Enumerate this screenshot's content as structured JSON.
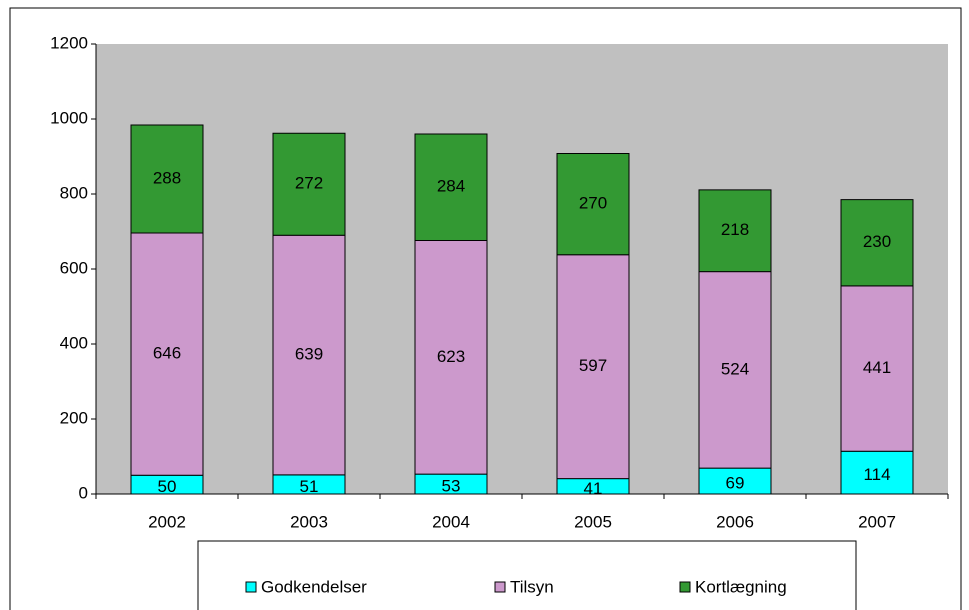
{
  "chart_data": {
    "type": "stacked_bar",
    "categories": [
      "2002",
      "2003",
      "2004",
      "2005",
      "2006",
      "2007"
    ],
    "series": [
      {
        "name": "Godkendelser",
        "color": "#00ffff",
        "values": [
          50,
          51,
          53,
          41,
          69,
          114
        ]
      },
      {
        "name": "Tilsyn",
        "color": "#cc99cc",
        "values": [
          646,
          639,
          623,
          597,
          524,
          441
        ]
      },
      {
        "name": "Kortlægning",
        "color": "#339933",
        "values": [
          288,
          272,
          284,
          270,
          218,
          230
        ]
      }
    ],
    "ylim": [
      0,
      1200
    ],
    "yticks": [
      0,
      200,
      400,
      600,
      800,
      1000,
      1200
    ],
    "grid": false,
    "legend": "bottom"
  }
}
